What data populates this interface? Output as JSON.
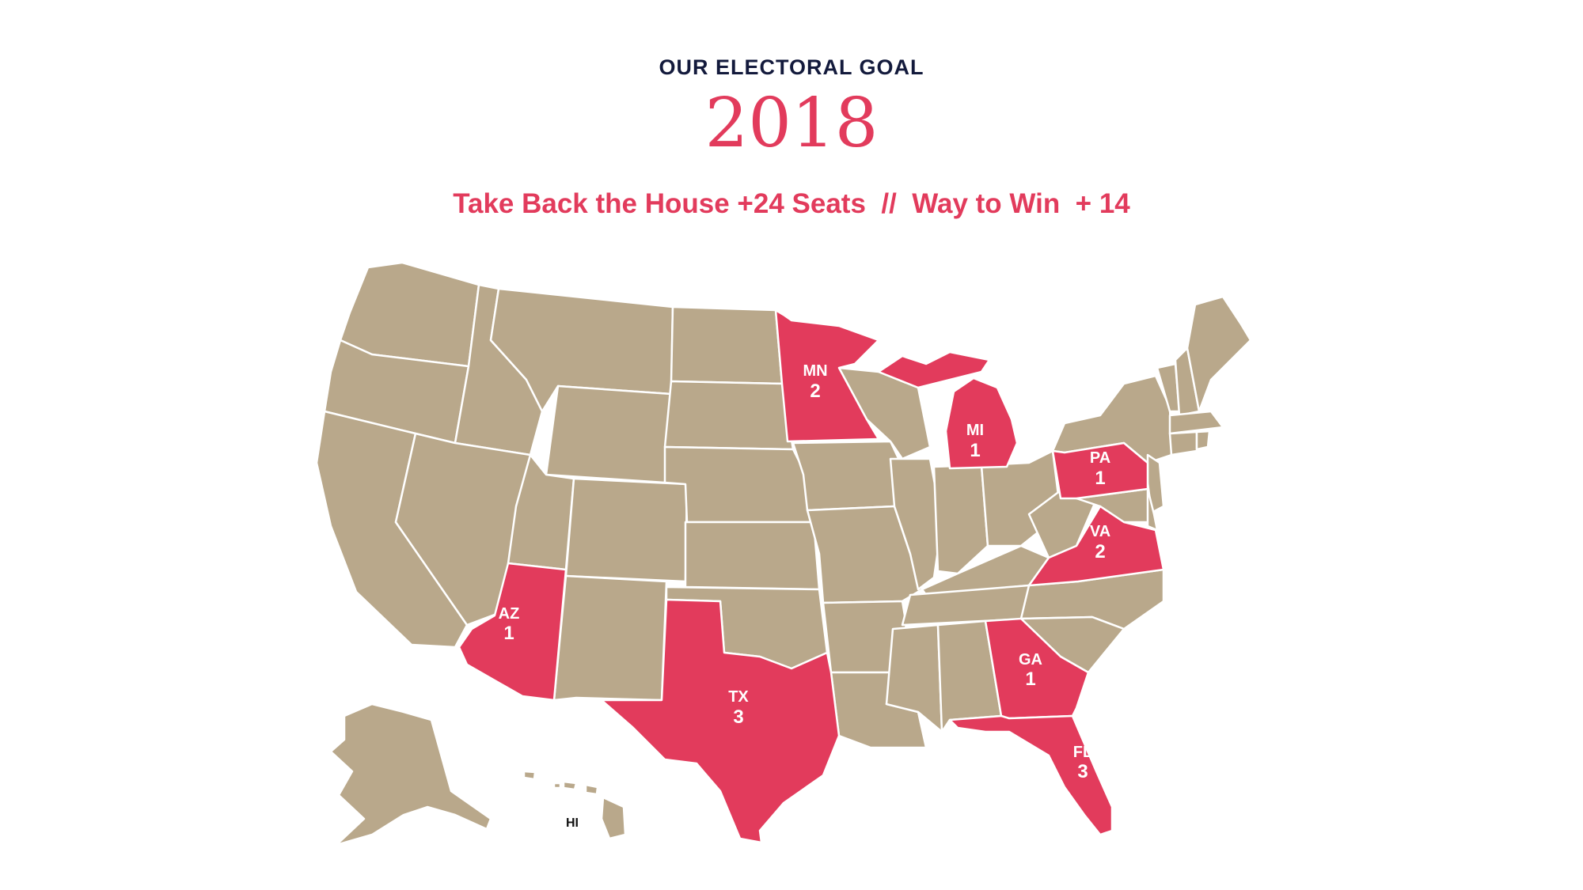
{
  "header": {
    "eyebrow": "OUR ELECTORAL GOAL",
    "year": "2018",
    "tagline": "Take Back the House +24 Seats  //  Way to Win  + 14"
  },
  "colors": {
    "target_state": "#e23b5c",
    "other_state": "#b9a88b",
    "border": "#ffffff"
  },
  "map": {
    "target_states": [
      {
        "abbr": "MN",
        "seats": "2"
      },
      {
        "abbr": "MI",
        "seats": "1"
      },
      {
        "abbr": "PA",
        "seats": "1"
      },
      {
        "abbr": "VA",
        "seats": "2"
      },
      {
        "abbr": "AZ",
        "seats": "1"
      },
      {
        "abbr": "TX",
        "seats": "3"
      },
      {
        "abbr": "GA",
        "seats": "1"
      },
      {
        "abbr": "FL",
        "seats": "3"
      }
    ],
    "inset_label": "HI"
  }
}
